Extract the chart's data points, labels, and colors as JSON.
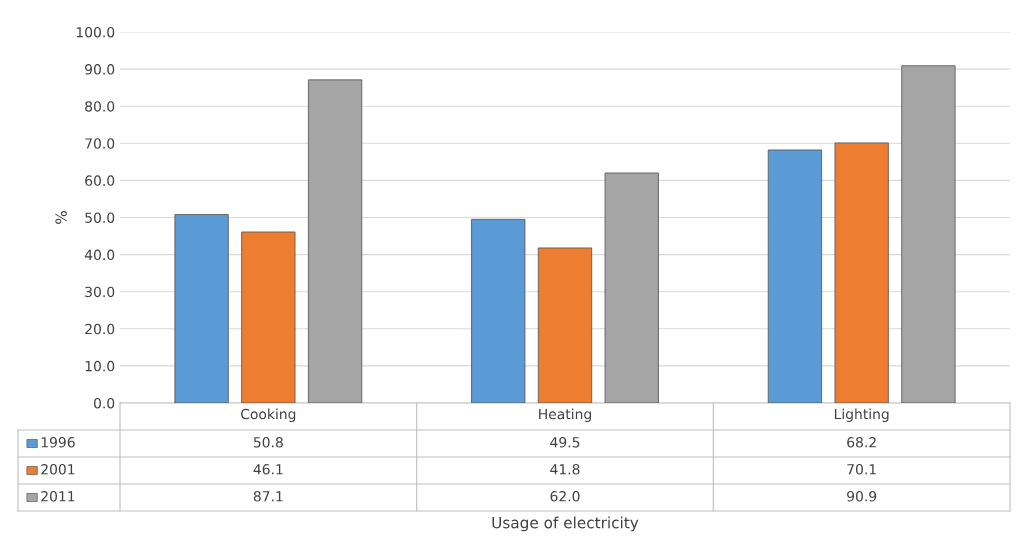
{
  "chart_data": {
    "type": "bar",
    "annotations": [
      "Usage of electricity"
    ],
    "ylabel": "%",
    "categories": [
      "Cooking",
      "Heating",
      "Lighting"
    ],
    "series": [
      {
        "name": "1996",
        "color": "#5b9bd5",
        "values": [
          50.8,
          49.5,
          68.2
        ],
        "value_labels": [
          "50.8",
          "49.5",
          "68.2"
        ]
      },
      {
        "name": "2001",
        "color": "#ed7d31",
        "values": [
          46.1,
          41.8,
          70.1
        ],
        "value_labels": [
          "46.1",
          "41.8",
          "70.1"
        ]
      },
      {
        "name": "2011",
        "color": "#a5a5a5",
        "values": [
          87.1,
          62.0,
          90.9
        ],
        "value_labels": [
          "87.1",
          "62.0",
          "90.9"
        ]
      }
    ],
    "ylim": [
      0,
      100
    ],
    "yticks": [
      {
        "value": 0,
        "label": "0.0"
      },
      {
        "value": 10,
        "label": "10.0"
      },
      {
        "value": 20,
        "label": "20.0"
      },
      {
        "value": 30,
        "label": "30.0"
      },
      {
        "value": 40,
        "label": "40.0"
      },
      {
        "value": 50,
        "label": "50.0"
      },
      {
        "value": 60,
        "label": "60.0"
      },
      {
        "value": 70,
        "label": "70.0"
      },
      {
        "value": 80,
        "label": "80.0"
      },
      {
        "value": 90,
        "label": "90.0"
      },
      {
        "value": 100,
        "label": "100.0"
      }
    ],
    "grid": "y",
    "legend": "bottom"
  }
}
